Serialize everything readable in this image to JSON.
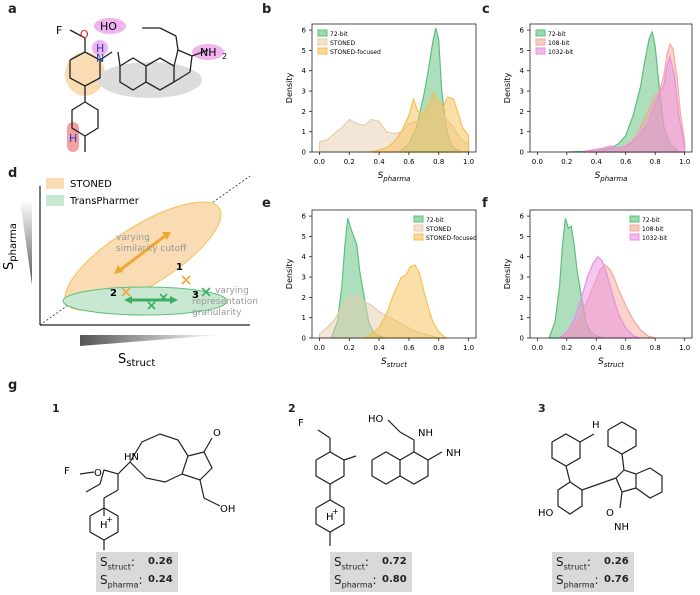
{
  "panels": {
    "a": "a",
    "b": "b",
    "c": "c",
    "d": "d",
    "e": "e",
    "f": "f",
    "g": "g"
  },
  "chart_data": [
    {
      "id": "b",
      "type": "area",
      "xlabel": "S_pharma",
      "ylabel": "Density",
      "xlim": [
        -0.05,
        1.05
      ],
      "ylim": [
        0,
        6.3
      ],
      "xticks": [
        0.0,
        0.2,
        0.4,
        0.6,
        0.8,
        1.0
      ],
      "yticks": [
        0,
        1,
        2,
        3,
        4,
        5,
        6
      ],
      "legend": "top-left",
      "series": [
        {
          "name": "72-bit",
          "color": "#5cbf7c",
          "x": [
            0.55,
            0.6,
            0.65,
            0.7,
            0.73,
            0.76,
            0.78,
            0.8,
            0.82,
            0.85,
            0.88,
            0.9,
            0.95
          ],
          "y": [
            0.1,
            0.4,
            1.2,
            2.8,
            4.0,
            5.4,
            6.1,
            5.5,
            3.0,
            1.2,
            0.4,
            0.2,
            0.0
          ]
        },
        {
          "name": "STONED",
          "color": "#e6cdb0",
          "x": [
            0.0,
            0.05,
            0.1,
            0.15,
            0.2,
            0.25,
            0.3,
            0.35,
            0.4,
            0.45,
            0.5,
            0.55,
            0.6,
            0.65,
            0.7,
            0.75,
            0.8,
            0.85,
            0.9,
            0.95,
            1.0
          ],
          "y": [
            0.5,
            0.6,
            0.9,
            1.2,
            1.6,
            1.4,
            1.3,
            1.6,
            1.5,
            1.0,
            0.9,
            1.0,
            1.4,
            1.5,
            1.7,
            2.3,
            2.4,
            1.6,
            1.2,
            0.6,
            0.4
          ]
        },
        {
          "name": "STONED-focused",
          "color": "#f6c052",
          "x": [
            0.35,
            0.4,
            0.45,
            0.5,
            0.55,
            0.6,
            0.63,
            0.66,
            0.7,
            0.73,
            0.76,
            0.8,
            0.83,
            0.86,
            0.9,
            0.93,
            0.96,
            1.0
          ],
          "y": [
            0.0,
            0.1,
            0.2,
            0.5,
            1.0,
            1.8,
            2.6,
            2.0,
            1.9,
            2.3,
            2.9,
            2.5,
            2.2,
            2.7,
            2.6,
            1.9,
            1.2,
            0.8
          ]
        }
      ]
    },
    {
      "id": "c",
      "type": "area",
      "xlabel": "S_pharma",
      "ylabel": "Density",
      "xlim": [
        -0.05,
        1.05
      ],
      "ylim": [
        0,
        6.3
      ],
      "xticks": [
        0.0,
        0.2,
        0.4,
        0.6,
        0.8,
        1.0
      ],
      "yticks": [
        0,
        1,
        2,
        3,
        4,
        5,
        6
      ],
      "legend": "top-left",
      "series": [
        {
          "name": "72-bit",
          "color": "#5cbf7c",
          "x": [
            0.2,
            0.4,
            0.5,
            0.55,
            0.6,
            0.65,
            0.7,
            0.73,
            0.76,
            0.78,
            0.8,
            0.83,
            0.86,
            0.9,
            0.95
          ],
          "y": [
            0.0,
            0.05,
            0.2,
            0.4,
            0.8,
            1.8,
            3.2,
            4.5,
            5.6,
            5.9,
            5.2,
            3.0,
            1.2,
            0.4,
            0.1
          ]
        },
        {
          "name": "108-bit",
          "color": "#f4a89a",
          "x": [
            0.3,
            0.5,
            0.6,
            0.65,
            0.7,
            0.75,
            0.8,
            0.83,
            0.86,
            0.88,
            0.9,
            0.92,
            0.95,
            0.97,
            1.0
          ],
          "y": [
            0.0,
            0.1,
            0.3,
            0.6,
            1.2,
            2.0,
            2.8,
            3.0,
            3.8,
            4.8,
            5.3,
            5.1,
            3.6,
            2.0,
            0.5
          ]
        },
        {
          "name": "1032-bit",
          "color": "#e88fe0",
          "x": [
            0.3,
            0.45,
            0.5,
            0.55,
            0.6,
            0.65,
            0.7,
            0.75,
            0.8,
            0.83,
            0.86,
            0.88,
            0.9,
            0.93,
            0.96,
            1.0
          ],
          "y": [
            0.0,
            0.2,
            0.3,
            0.2,
            0.3,
            0.5,
            0.9,
            1.4,
            2.4,
            2.9,
            3.3,
            4.2,
            4.7,
            3.8,
            1.8,
            0.3
          ]
        }
      ]
    },
    {
      "id": "e",
      "type": "area",
      "xlabel": "S_struct",
      "ylabel": "Density",
      "xlim": [
        -0.05,
        1.05
      ],
      "ylim": [
        0,
        6.3
      ],
      "xticks": [
        0.0,
        0.2,
        0.4,
        0.6,
        0.8,
        1.0
      ],
      "yticks": [
        0,
        1,
        2,
        3,
        4,
        5,
        6
      ],
      "legend": "top-right",
      "series": [
        {
          "name": "72-bit",
          "color": "#5cbf7c",
          "x": [
            0.08,
            0.12,
            0.15,
            0.17,
            0.19,
            0.21,
            0.23,
            0.25,
            0.27,
            0.3,
            0.33,
            0.36,
            0.4,
            0.45
          ],
          "y": [
            0.0,
            0.8,
            2.5,
            4.5,
            5.9,
            5.4,
            5.0,
            4.6,
            3.3,
            2.0,
            0.8,
            0.3,
            0.1,
            0.0
          ]
        },
        {
          "name": "STONED",
          "color": "#e6cdb0",
          "x": [
            0.0,
            0.05,
            0.1,
            0.15,
            0.2,
            0.25,
            0.3,
            0.35,
            0.4,
            0.45,
            0.5,
            0.55,
            0.6,
            0.65,
            0.7,
            0.75,
            0.8
          ],
          "y": [
            0.2,
            0.5,
            0.9,
            1.5,
            2.0,
            2.1,
            1.8,
            1.6,
            1.3,
            1.1,
            0.9,
            0.7,
            0.5,
            0.3,
            0.2,
            0.1,
            0.0
          ]
        },
        {
          "name": "STONED-focused",
          "color": "#f6c052",
          "x": [
            0.3,
            0.35,
            0.4,
            0.45,
            0.5,
            0.55,
            0.58,
            0.61,
            0.64,
            0.67,
            0.7,
            0.73,
            0.76,
            0.8,
            0.85
          ],
          "y": [
            0.0,
            0.2,
            0.5,
            1.2,
            2.2,
            3.0,
            3.1,
            3.5,
            3.6,
            3.2,
            2.3,
            1.5,
            0.8,
            0.3,
            0.0
          ]
        }
      ]
    },
    {
      "id": "f",
      "type": "area",
      "xlabel": "S_struct",
      "ylabel": "Density",
      "xlim": [
        -0.05,
        1.05
      ],
      "ylim": [
        0,
        6.3
      ],
      "xticks": [
        0.0,
        0.2,
        0.4,
        0.6,
        0.8,
        1.0
      ],
      "yticks": [
        0,
        1,
        2,
        3,
        4,
        5,
        6
      ],
      "legend": "top-right",
      "series": [
        {
          "name": "72-bit",
          "color": "#5cbf7c",
          "x": [
            0.08,
            0.12,
            0.15,
            0.17,
            0.19,
            0.21,
            0.23,
            0.25,
            0.27,
            0.3,
            0.33,
            0.36,
            0.4,
            0.45
          ],
          "y": [
            0.0,
            0.8,
            2.5,
            4.5,
            5.9,
            5.4,
            5.5,
            4.6,
            3.3,
            2.0,
            0.8,
            0.3,
            0.1,
            0.0
          ]
        },
        {
          "name": "108-bit",
          "color": "#f4a89a",
          "x": [
            0.15,
            0.2,
            0.25,
            0.3,
            0.35,
            0.4,
            0.43,
            0.46,
            0.49,
            0.52,
            0.55,
            0.6,
            0.65,
            0.7,
            0.75,
            0.8
          ],
          "y": [
            0.0,
            0.2,
            0.6,
            1.2,
            2.0,
            2.9,
            3.4,
            3.6,
            3.4,
            3.0,
            2.4,
            1.6,
            0.9,
            0.4,
            0.1,
            0.0
          ]
        },
        {
          "name": "1032-bit",
          "color": "#e88fe0",
          "x": [
            0.15,
            0.2,
            0.25,
            0.3,
            0.34,
            0.38,
            0.41,
            0.44,
            0.47,
            0.5,
            0.55,
            0.6,
            0.65,
            0.7
          ],
          "y": [
            0.0,
            0.3,
            0.9,
            2.0,
            3.0,
            3.7,
            4.0,
            3.8,
            3.2,
            2.4,
            1.2,
            0.5,
            0.1,
            0.0
          ]
        }
      ]
    }
  ],
  "schematic": {
    "legend": [
      {
        "label": "STONED",
        "color": "#f9dcb4"
      },
      {
        "label": "TransPharmer",
        "color": "#c8e8d2"
      }
    ],
    "y_axis": "S",
    "y_axis_sub": "pharma",
    "x_axis": "S",
    "x_axis_sub": "struct",
    "note_stoned": [
      "varying",
      "similarity cutoff"
    ],
    "note_transpharmer": [
      "varying",
      "representation",
      "granularity"
    ],
    "points": [
      "1",
      "2",
      "3"
    ]
  },
  "molecules": [
    {
      "num": "1",
      "s_struct": "0.26",
      "s_pharma": "0.24"
    },
    {
      "num": "2",
      "s_struct": "0.72",
      "s_pharma": "0.80"
    },
    {
      "num": "3",
      "s_struct": "0.26",
      "s_pharma": "0.76"
    }
  ],
  "score_labels": {
    "s": "S",
    "struct": "struct",
    "pharma": "pharma",
    "colon": ":"
  },
  "mol_text": {
    "f": "F",
    "o": "O",
    "h": "H",
    "n": "N",
    "nh2": "NH",
    "two": "2",
    "ho": "HO",
    "oh": "OH",
    "plus": "+",
    "hn": "HN"
  }
}
